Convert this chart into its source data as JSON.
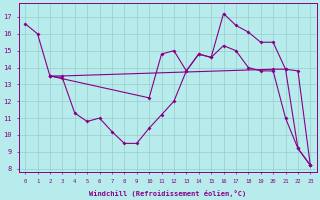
{
  "xlabel": "Windchill (Refroidissement éolien,°C)",
  "bg_color": "#b8ecec",
  "line_color": "#880088",
  "grid_color": "#99cccc",
  "line1_x": [
    0,
    1,
    2,
    10,
    11,
    12,
    13,
    14,
    15,
    16,
    17,
    18,
    19,
    20,
    21,
    22,
    23
  ],
  "line1_y": [
    16.6,
    16.0,
    13.5,
    12.2,
    14.8,
    15.0,
    13.8,
    14.8,
    14.6,
    17.2,
    16.5,
    16.1,
    15.5,
    15.5,
    13.9,
    9.2,
    8.2
  ],
  "line2_x": [
    2,
    3,
    4,
    5,
    6,
    7,
    8,
    9,
    10,
    11,
    12,
    13,
    14,
    15,
    16,
    17,
    18,
    19,
    20,
    21,
    22,
    23
  ],
  "line2_y": [
    13.5,
    13.4,
    11.3,
    10.8,
    11.0,
    10.2,
    9.5,
    9.5,
    10.4,
    11.2,
    12.0,
    13.8,
    14.8,
    14.6,
    15.3,
    15.0,
    14.0,
    13.8,
    13.8,
    11.0,
    9.2,
    8.2
  ],
  "line3_x": [
    2,
    3,
    20,
    21,
    22,
    23
  ],
  "line3_y": [
    13.5,
    13.5,
    13.9,
    13.9,
    13.8,
    8.2
  ],
  "xlim": [
    -0.5,
    23.5
  ],
  "ylim": [
    7.8,
    17.8
  ],
  "yticks": [
    8,
    9,
    10,
    11,
    12,
    13,
    14,
    15,
    16,
    17
  ],
  "xticks": [
    0,
    1,
    2,
    3,
    4,
    5,
    6,
    7,
    8,
    9,
    10,
    11,
    12,
    13,
    14,
    15,
    16,
    17,
    18,
    19,
    20,
    21,
    22,
    23
  ]
}
